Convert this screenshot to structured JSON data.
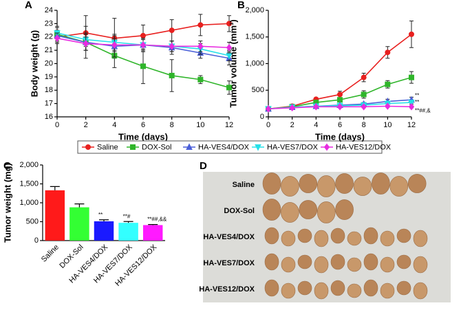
{
  "chart_data": [
    {
      "panel": "A",
      "type": "line",
      "xlabel": "Time (days)",
      "ylabel": "Body weight (g)",
      "x": [
        0,
        2,
        4,
        6,
        8,
        10,
        12
      ],
      "xlim": [
        0,
        12
      ],
      "xticks": [
        0,
        2,
        4,
        6,
        8,
        10,
        12
      ],
      "ylim": [
        16,
        24
      ],
      "yticks": [
        16,
        17,
        18,
        19,
        20,
        21,
        22,
        23,
        24
      ],
      "legend": "below",
      "series": [
        {
          "name": "Saline",
          "color": "#e8201f",
          "marker": "circle",
          "values": [
            22.0,
            22.3,
            21.9,
            22.1,
            22.5,
            22.9,
            23.0
          ],
          "errors": [
            0.5,
            1.3,
            1.5,
            0.8,
            0.8,
            0.8,
            0.6
          ]
        },
        {
          "name": "DOX-Sol",
          "color": "#2fb52a",
          "marker": "square",
          "values": [
            22.2,
            21.6,
            20.6,
            19.8,
            19.1,
            18.8,
            18.2
          ],
          "errors": [
            0.6,
            1.2,
            0.9,
            1.3,
            1.2,
            0.3,
            0.5
          ]
        },
        {
          "name": "HA-VES4/DOX",
          "color": "#4a5fd8",
          "marker": "triangle",
          "values": [
            22.1,
            21.6,
            21.3,
            21.4,
            21.2,
            20.8,
            20.4
          ],
          "errors": [
            0.4,
            0.6,
            0.8,
            0.5,
            0.5,
            0.4,
            0.5
          ]
        },
        {
          "name": "HA-VES7/DOX",
          "color": "#26e0e8",
          "marker": "triangle-down",
          "values": [
            22.3,
            21.8,
            21.6,
            21.4,
            21.3,
            21.1,
            20.6
          ],
          "errors": [
            0.4,
            0.5,
            0.6,
            0.5,
            0.4,
            0.4,
            0.4
          ]
        },
        {
          "name": "HA-VES12/DOX",
          "color": "#e82ce0",
          "marker": "diamond",
          "values": [
            21.9,
            21.5,
            21.4,
            21.4,
            21.3,
            21.3,
            21.2
          ],
          "errors": [
            0.4,
            0.5,
            0.5,
            0.4,
            0.4,
            0.4,
            0.4
          ]
        }
      ]
    },
    {
      "panel": "B",
      "type": "line",
      "xlabel": "Time (days)",
      "ylabel": "Tumor volume (mm³)",
      "x": [
        0,
        2,
        4,
        6,
        8,
        10,
        12
      ],
      "xlim": [
        0,
        12
      ],
      "xticks": [
        0,
        2,
        4,
        6,
        8,
        10,
        12
      ],
      "ylim": [
        0,
        2000
      ],
      "yticks": [
        0,
        500,
        {
          "value": 1000,
          "label": "1,000"
        },
        {
          "value": 1500,
          "label": "1,500"
        },
        {
          "value": 2000,
          "label": "2,000"
        }
      ],
      "series": [
        {
          "name": "Saline",
          "color": "#e8201f",
          "marker": "circle",
          "values": [
            150,
            200,
            330,
            420,
            740,
            1210,
            1550
          ],
          "errors": [
            20,
            30,
            30,
            60,
            80,
            110,
            250
          ]
        },
        {
          "name": "DOX-Sol",
          "color": "#2fb52a",
          "marker": "square",
          "values": [
            150,
            190,
            270,
            320,
            420,
            610,
            740
          ],
          "errors": [
            20,
            20,
            30,
            40,
            70,
            70,
            110
          ]
        },
        {
          "name": "HA-VES4/DOX",
          "color": "#4a5fd8",
          "marker": "triangle",
          "values": [
            150,
            180,
            200,
            220,
            240,
            290,
            320
          ],
          "errors": [
            20,
            20,
            20,
            30,
            30,
            40,
            50
          ],
          "annotation": "**"
        },
        {
          "name": "HA-VES7/DOX",
          "color": "#26e0e8",
          "marker": "triangle-down",
          "values": [
            150,
            180,
            200,
            210,
            220,
            250,
            270
          ],
          "errors": [
            20,
            20,
            20,
            20,
            30,
            30,
            30
          ],
          "annotation": "**"
        },
        {
          "name": "HA-VES12/DOX",
          "color": "#e82ce0",
          "marker": "diamond",
          "values": [
            150,
            170,
            190,
            190,
            190,
            200,
            190
          ],
          "errors": [
            20,
            20,
            20,
            20,
            20,
            20,
            20
          ],
          "annotation": "**##,&"
        }
      ]
    },
    {
      "panel": "C",
      "type": "bar",
      "ylabel": "Tumor weight (mg)",
      "categories": [
        "Saline",
        "DOX-Sol",
        "HA-VES4/DOX",
        "HA-VES7/DOX",
        "HA-VES12/DOX"
      ],
      "values": [
        1330,
        880,
        510,
        470,
        410
      ],
      "errors": [
        100,
        90,
        40,
        35,
        15
      ],
      "colors": [
        "#ff1a1a",
        "#33ff33",
        "#1a1aff",
        "#33ffff",
        "#ff1aff"
      ],
      "annotations": [
        null,
        null,
        "**",
        "**#",
        "**##,&&"
      ],
      "ylim": [
        0,
        2000
      ],
      "yticks": [
        0,
        500,
        {
          "value": 1000,
          "label": "1,000"
        },
        {
          "value": 1500,
          "label": "1,500"
        },
        {
          "value": 2000,
          "label": "2,000"
        }
      ]
    },
    {
      "panel": "D",
      "type": "image",
      "row_labels": [
        "Saline",
        "DOX-Sol",
        "HA-VES4/DOX",
        "HA-VES7/DOX",
        "HA-VES12/DOX"
      ]
    }
  ]
}
